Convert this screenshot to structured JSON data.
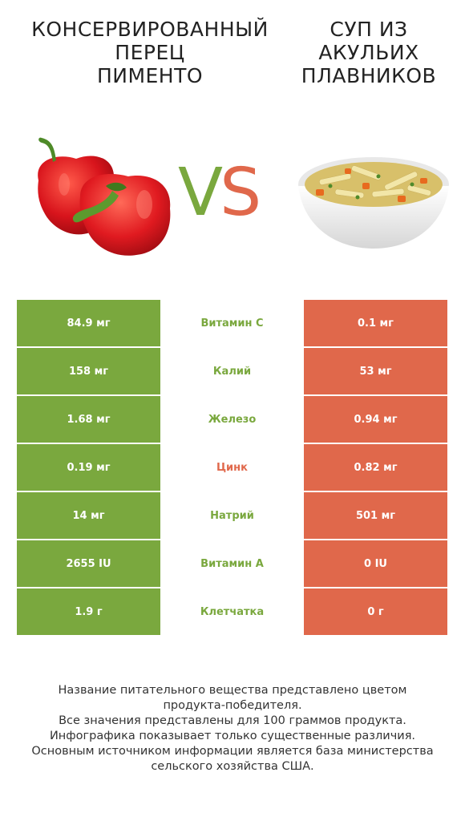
{
  "left_product": {
    "title_lines": [
      "КОНСЕРВИРОВАННЫЙ",
      "ПЕРЕЦ",
      "ПИМЕНТО"
    ],
    "color": "#7aa83e",
    "image_icon": "red-bell-pepper-icon"
  },
  "right_product": {
    "title_lines": [
      "СУП ИЗ",
      "АКУЛЬИХ",
      "ПЛАВНИКОВ"
    ],
    "color": "#e0684b",
    "image_icon": "soup-bowl-icon"
  },
  "vs": {
    "v": "V",
    "s": "S"
  },
  "rows": [
    {
      "left": "84.9 мг",
      "nutrient": "Витамин C",
      "right": "0.1 мг",
      "winner": "left"
    },
    {
      "left": "158 мг",
      "nutrient": "Калий",
      "right": "53 мг",
      "winner": "left"
    },
    {
      "left": "1.68 мг",
      "nutrient": "Железо",
      "right": "0.94 мг",
      "winner": "left"
    },
    {
      "left": "0.19 мг",
      "nutrient": "Цинк",
      "right": "0.82 мг",
      "winner": "right"
    },
    {
      "left": "14 мг",
      "nutrient": "Натрий",
      "right": "501 мг",
      "winner": "left"
    },
    {
      "left": "2655 IU",
      "nutrient": "Витамин A",
      "right": "0 IU",
      "winner": "left"
    },
    {
      "left": "1.9 г",
      "nutrient": "Клетчатка",
      "right": "0 г",
      "winner": "left"
    }
  ],
  "footer_lines": [
    "Название питательного вещества представлено цветом",
    "продукта-победителя.",
    "Все значения представлены для 100 граммов продукта.",
    "Инфографика показывает только существенные различия.",
    "Основным источником информации является база министерства",
    "сельского хозяйства США."
  ]
}
